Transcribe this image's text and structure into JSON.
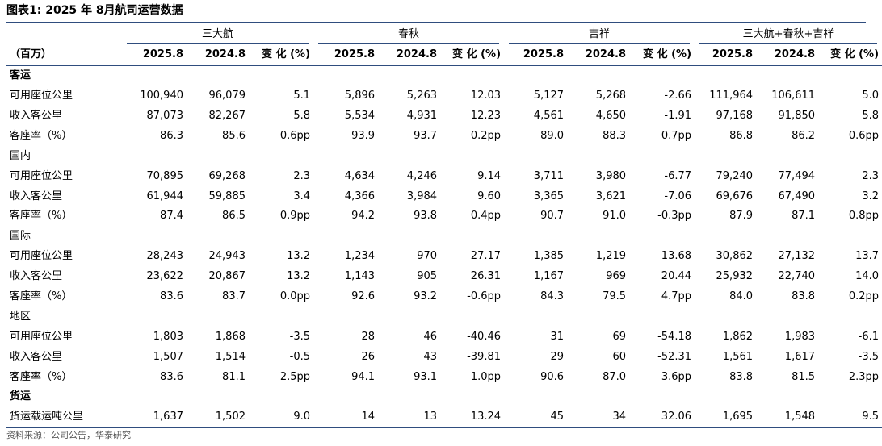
{
  "title": "图表1:  2025 年 8月航司运营数据",
  "groups": [
    "三大航",
    "春秋",
    "吉祥",
    "三大航+春秋+吉祥"
  ],
  "header": {
    "label": "（百万）",
    "cols": [
      "2025.8",
      "2024.8",
      "变 化 (%)",
      "2025.8",
      "2024.8",
      "变 化 (%)",
      "2025.8",
      "2024.8",
      "变 化 (%)",
      "2025.8",
      "2024.8",
      "变 化 (%)"
    ]
  },
  "rows": [
    {
      "label": "客运",
      "bold": true,
      "values": []
    },
    {
      "label": "可用座位公里",
      "values": [
        "100,940",
        "96,079",
        "5.1",
        "5,896",
        "5,263",
        "12.03",
        "5,127",
        "5,268",
        "-2.66",
        "111,964",
        "106,611",
        "5.0"
      ]
    },
    {
      "label": "收入客公里",
      "values": [
        "87,073",
        "82,267",
        "5.8",
        "5,534",
        "4,931",
        "12.23",
        "4,561",
        "4,650",
        "-1.91",
        "97,168",
        "91,850",
        "5.8"
      ]
    },
    {
      "label": "客座率（%）",
      "values": [
        "86.3",
        "85.6",
        "0.6pp",
        "93.9",
        "93.7",
        "0.2pp",
        "89.0",
        "88.3",
        "0.7pp",
        "86.8",
        "86.2",
        "0.6pp"
      ]
    },
    {
      "label": "国内",
      "values": []
    },
    {
      "label": "可用座位公里",
      "values": [
        "70,895",
        "69,268",
        "2.3",
        "4,634",
        "4,246",
        "9.14",
        "3,711",
        "3,980",
        "-6.77",
        "79,240",
        "77,494",
        "2.3"
      ]
    },
    {
      "label": "收入客公里",
      "values": [
        "61,944",
        "59,885",
        "3.4",
        "4,366",
        "3,984",
        "9.60",
        "3,365",
        "3,621",
        "-7.06",
        "69,676",
        "67,490",
        "3.2"
      ]
    },
    {
      "label": "客座率（%）",
      "values": [
        "87.4",
        "86.5",
        "0.9pp",
        "94.2",
        "93.8",
        "0.4pp",
        "90.7",
        "91.0",
        "-0.3pp",
        "87.9",
        "87.1",
        "0.8pp"
      ]
    },
    {
      "label": "国际",
      "values": []
    },
    {
      "label": "可用座位公里",
      "values": [
        "28,243",
        "24,943",
        "13.2",
        "1,234",
        "970",
        "27.17",
        "1,385",
        "1,219",
        "13.68",
        "30,862",
        "27,132",
        "13.7"
      ]
    },
    {
      "label": "收入客公里",
      "values": [
        "23,622",
        "20,867",
        "13.2",
        "1,143",
        "905",
        "26.31",
        "1,167",
        "969",
        "20.44",
        "25,932",
        "22,740",
        "14.0"
      ]
    },
    {
      "label": "客座率（%）",
      "values": [
        "83.6",
        "83.7",
        "0.0pp",
        "92.6",
        "93.2",
        "-0.6pp",
        "84.3",
        "79.5",
        "4.7pp",
        "84.0",
        "83.8",
        "0.2pp"
      ]
    },
    {
      "label": "地区",
      "values": []
    },
    {
      "label": "可用座位公里",
      "values": [
        "1,803",
        "1,868",
        "-3.5",
        "28",
        "46",
        "-40.46",
        "31",
        "69",
        "-54.18",
        "1,862",
        "1,983",
        "-6.1"
      ]
    },
    {
      "label": "收入客公里",
      "values": [
        "1,507",
        "1,514",
        "-0.5",
        "26",
        "43",
        "-39.81",
        "29",
        "60",
        "-52.31",
        "1,561",
        "1,617",
        "-3.5"
      ]
    },
    {
      "label": "客座率（%）",
      "values": [
        "83.6",
        "81.1",
        "2.5pp",
        "94.1",
        "93.1",
        "1.0pp",
        "90.6",
        "87.0",
        "3.6pp",
        "83.8",
        "81.5",
        "2.3pp"
      ]
    },
    {
      "label": "货运",
      "bold": true,
      "values": []
    },
    {
      "label": "货运载运吨公里",
      "values": [
        "1,637",
        "1,502",
        "9.0",
        "14",
        "13",
        "13.24",
        "45",
        "34",
        "32.06",
        "1,695",
        "1,548",
        "9.5"
      ]
    }
  ],
  "source": "资料来源：公司公告，华泰研究"
}
